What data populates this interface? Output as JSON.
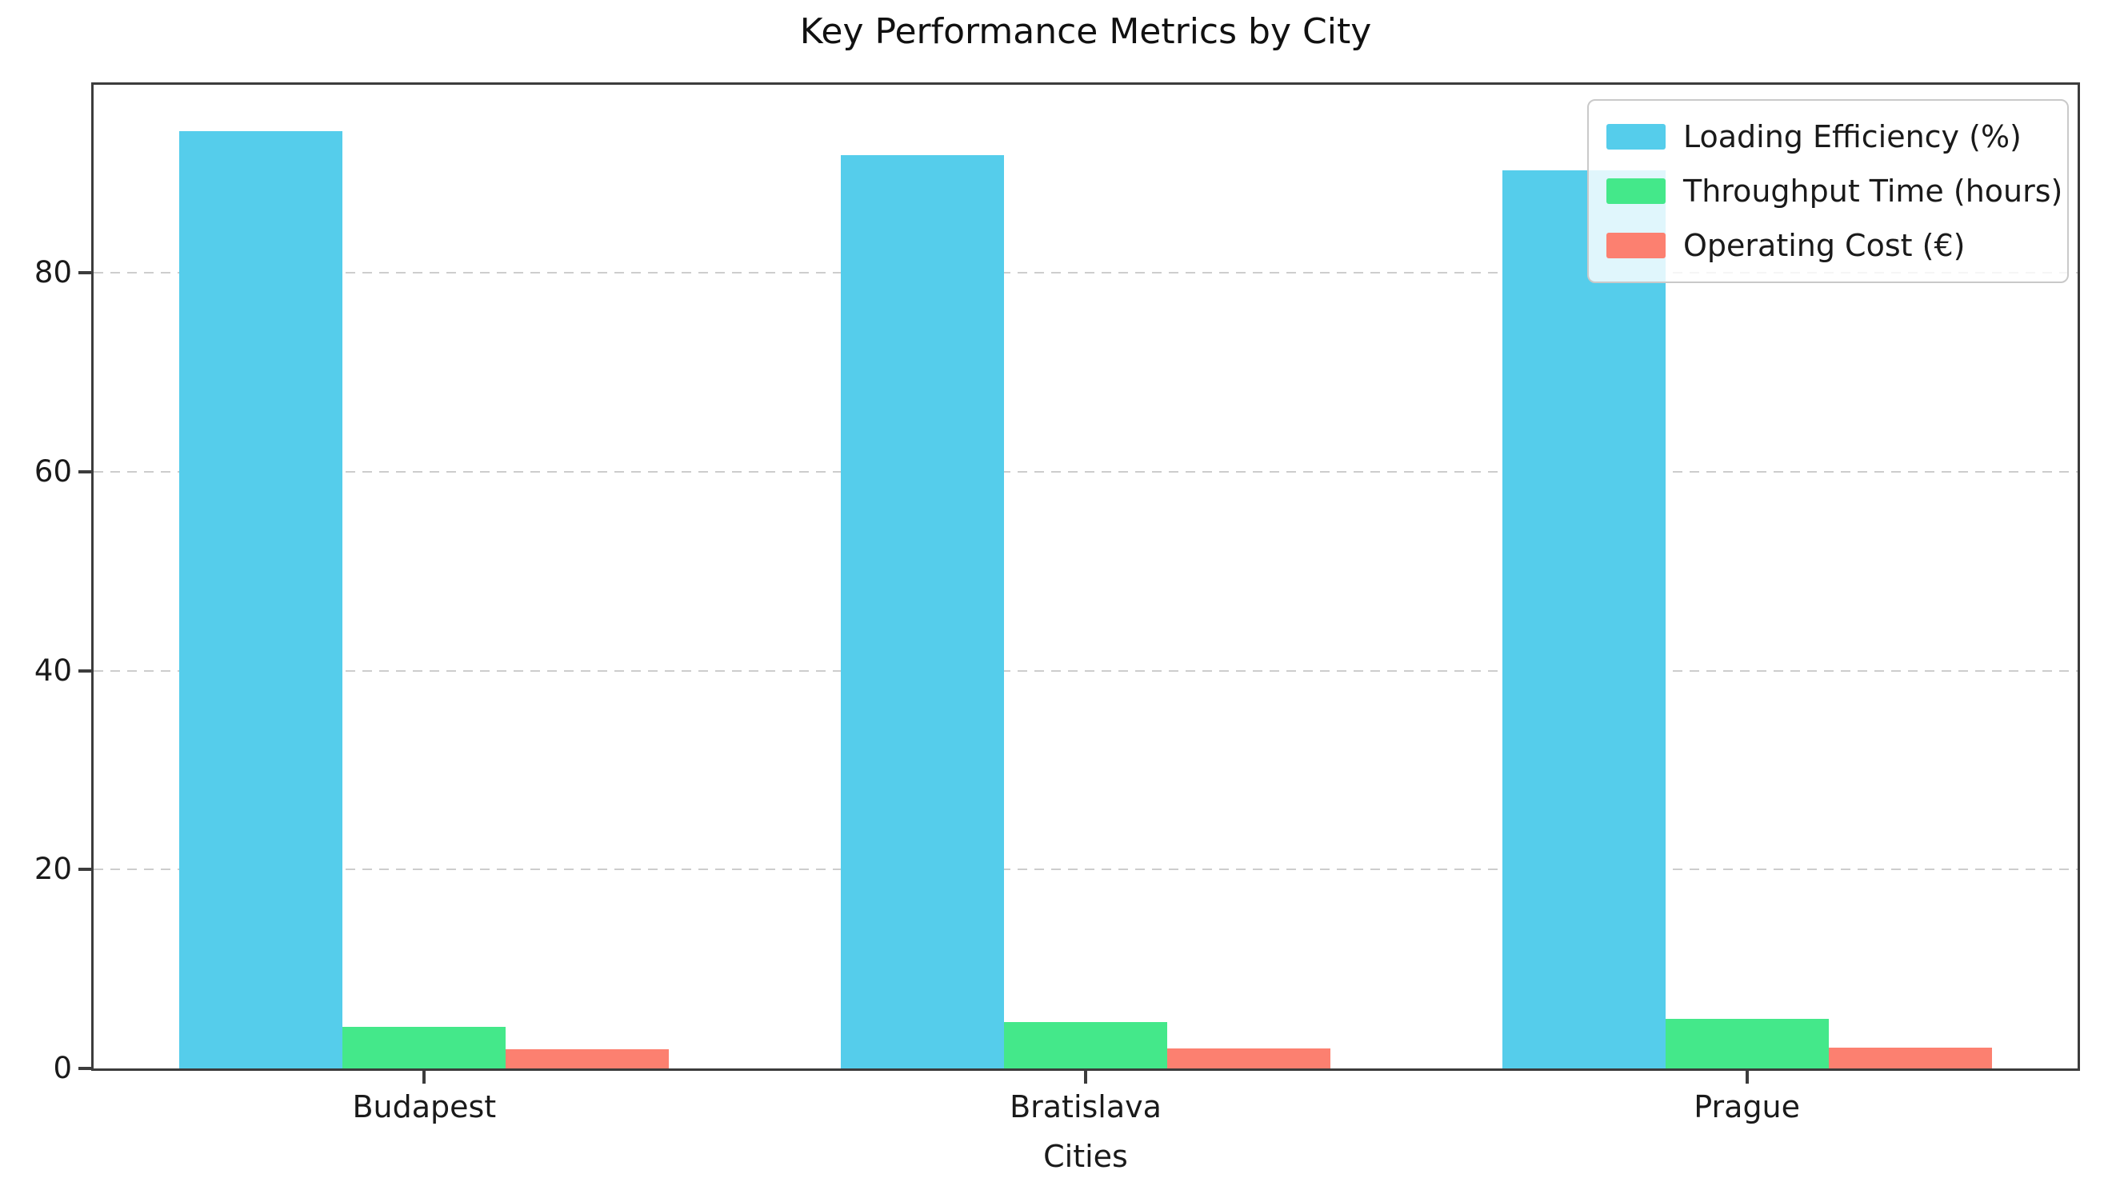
{
  "chart_data": {
    "type": "bar",
    "title": "Key Performance Metrics by City",
    "xlabel": "Cities",
    "ylabel": "",
    "categories": [
      "Budapest",
      "Bratislava",
      "Prague"
    ],
    "series": [
      {
        "name": "Loading Efficiency (%)",
        "color": "#55CDEB",
        "values": [
          94.2,
          91.8,
          90.3
        ]
      },
      {
        "name": "Throughput Time (hours)",
        "color": "#44E88A",
        "values": [
          4.2,
          4.7,
          5.0
        ]
      },
      {
        "name": "Operating Cost (€)",
        "color": "#FC8070",
        "values": [
          1.9,
          2.0,
          2.1
        ]
      }
    ],
    "yticks": [
      0,
      20,
      40,
      60,
      80
    ],
    "ylim": [
      0,
      98.9
    ],
    "grid": "horizontal-dashed",
    "gridline_color": "#cdcdcd",
    "spine_color": "#3c3c3c",
    "legend_position": "upper right",
    "background_color": "#ffffff"
  }
}
